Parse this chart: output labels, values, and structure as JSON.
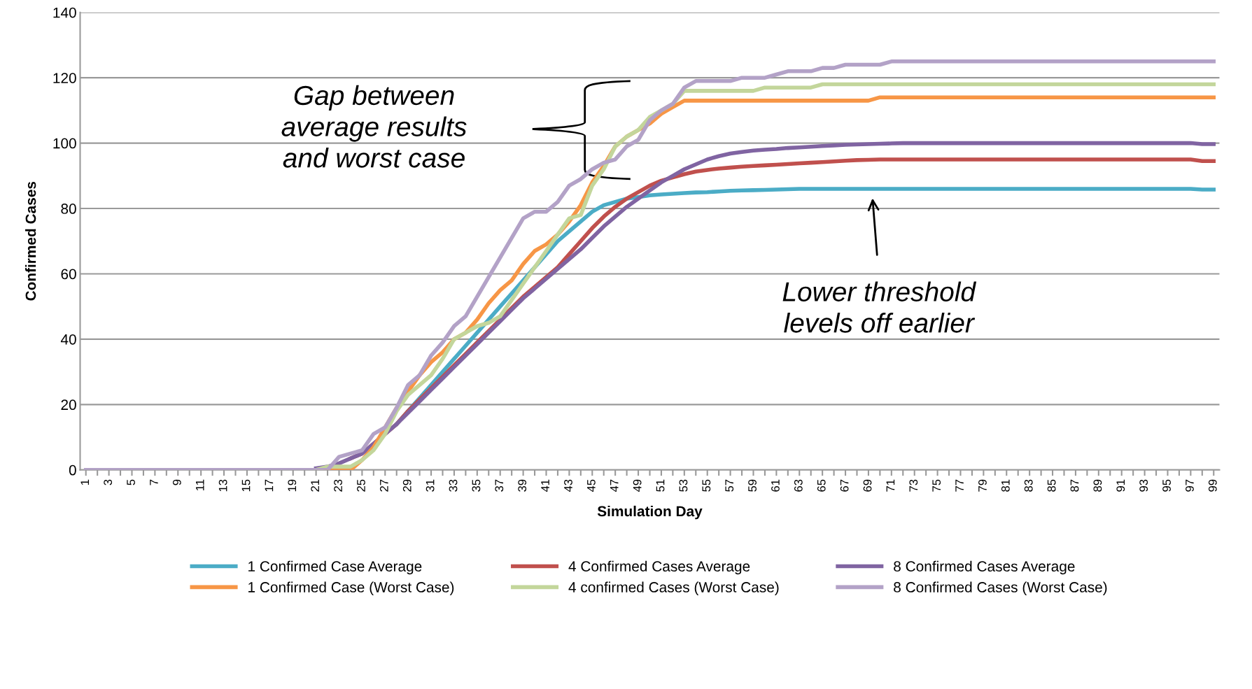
{
  "chart_data": {
    "type": "line",
    "xlabel": "Simulation Day",
    "ylabel": "Confirmed Cases",
    "categories": [
      "1",
      null,
      "3",
      null,
      "5",
      null,
      "7",
      null,
      "9",
      null,
      "11",
      null,
      "13",
      null,
      "15",
      null,
      "17",
      null,
      "19",
      null,
      "21",
      null,
      "23",
      null,
      "25",
      null,
      "27",
      null,
      "29",
      null,
      "31",
      null,
      "33",
      null,
      "35",
      null,
      "37",
      null,
      "39",
      null,
      "41",
      null,
      "43",
      null,
      "45",
      null,
      "47",
      null,
      "49",
      null,
      "51",
      null,
      "53",
      null,
      "55",
      null,
      "57",
      null,
      "59",
      null,
      "61",
      null,
      "63",
      null,
      "65",
      null,
      "67",
      null,
      "69",
      null,
      "71",
      null,
      "73",
      null,
      "75",
      null,
      "77",
      null,
      "79",
      null,
      "81",
      null,
      "83",
      null,
      "85",
      null,
      "87",
      null,
      "89",
      null,
      "91",
      null,
      "93",
      null,
      "95",
      null,
      "97",
      null,
      "99"
    ],
    "ylim": [
      0,
      140
    ],
    "yticks": [
      0,
      20,
      40,
      60,
      80,
      100,
      120,
      140
    ],
    "grid": "y",
    "legend": "bottom",
    "marker": "none",
    "line_style": "solid",
    "series": [
      {
        "name": "1 Confirmed Case Average",
        "color": "#4bacc6",
        "values": [
          null,
          null,
          null,
          null,
          null,
          null,
          null,
          null,
          null,
          null,
          null,
          null,
          null,
          null,
          null,
          null,
          null,
          null,
          null,
          null,
          null,
          null,
          null,
          null,
          null,
          null,
          null,
          14,
          18,
          22,
          26,
          30,
          34,
          38,
          42,
          46,
          50,
          54,
          58,
          62,
          66,
          70,
          73,
          76,
          79,
          81,
          82,
          83,
          83.5,
          84,
          84.3,
          84.5,
          84.7,
          84.9,
          85,
          85.2,
          85.4,
          85.5,
          85.6,
          85.7,
          85.8,
          85.9,
          86,
          86,
          86,
          86,
          86,
          86,
          86,
          86,
          86,
          86,
          86,
          86,
          86,
          86,
          86,
          86,
          86,
          86,
          86,
          86,
          86,
          86,
          86,
          86,
          86,
          86,
          86,
          86,
          86,
          86,
          86,
          86,
          86,
          86,
          86,
          85.8,
          85.8
        ]
      },
      {
        "name": "4 Confirmed Cases Average",
        "color": "#c0504d",
        "values": [
          null,
          null,
          null,
          null,
          null,
          null,
          null,
          null,
          null,
          null,
          null,
          null,
          null,
          null,
          null,
          null,
          null,
          null,
          null,
          null,
          null,
          null,
          null,
          3.5,
          5,
          8,
          11,
          14,
          18,
          21.5,
          25,
          28.5,
          32,
          35.5,
          39,
          42.5,
          46,
          49.5,
          53,
          56,
          59,
          62,
          66,
          70,
          74,
          77.5,
          80.5,
          83,
          85,
          87,
          88.5,
          89.5,
          90.5,
          91.3,
          91.8,
          92.2,
          92.5,
          92.8,
          93,
          93.2,
          93.4,
          93.6,
          93.8,
          94,
          94.2,
          94.4,
          94.6,
          94.8,
          94.9,
          95,
          95,
          95,
          95,
          95,
          95,
          95,
          95,
          95,
          95,
          95,
          95,
          95,
          95,
          95,
          95,
          95,
          95,
          95,
          95,
          95,
          95,
          95,
          95,
          95,
          95,
          95,
          95,
          94.5,
          94.5
        ]
      },
      {
        "name": "8 Confirmed Cases Average",
        "color": "#8064a2",
        "values": [
          null,
          null,
          null,
          null,
          null,
          null,
          null,
          null,
          null,
          null,
          null,
          null,
          null,
          null,
          null,
          null,
          null,
          null,
          null,
          null,
          0.5,
          1,
          2,
          3.5,
          5,
          8,
          11,
          14,
          17.5,
          21,
          24.5,
          28,
          31.5,
          35,
          38.5,
          42,
          45.5,
          49,
          52.5,
          55.5,
          58.5,
          61.5,
          64.5,
          67.5,
          71,
          74.5,
          77.5,
          80.5,
          83,
          85.5,
          88,
          90,
          92,
          93.5,
          95,
          96,
          96.8,
          97.3,
          97.7,
          98,
          98.2,
          98.5,
          98.7,
          98.9,
          99.1,
          99.3,
          99.5,
          99.6,
          99.7,
          99.8,
          99.9,
          100,
          100,
          100,
          100,
          100,
          100,
          100,
          100,
          100,
          100,
          100,
          100,
          100,
          100,
          100,
          100,
          100,
          100,
          100,
          100,
          100,
          100,
          100,
          100,
          100,
          100,
          99.7,
          99.7
        ]
      },
      {
        "name": "1 Confirmed Case (Worst Case)",
        "color": "#f79646",
        "values": [
          null,
          null,
          null,
          null,
          null,
          null,
          null,
          null,
          null,
          null,
          null,
          null,
          null,
          null,
          null,
          null,
          null,
          null,
          null,
          null,
          0,
          0,
          0,
          0,
          3,
          7,
          13,
          19,
          24,
          29,
          33,
          36,
          40,
          42,
          46,
          51,
          55,
          58,
          63,
          67,
          69,
          72,
          76,
          81,
          88,
          93,
          99,
          102,
          104,
          106,
          109,
          111,
          113,
          113,
          113,
          113,
          113,
          113,
          113,
          113,
          113,
          113,
          113,
          113,
          113,
          113,
          113,
          113,
          113,
          114,
          114,
          114,
          114,
          114,
          114,
          114,
          114,
          114,
          114,
          114,
          114,
          114,
          114,
          114,
          114,
          114,
          114,
          114,
          114,
          114,
          114,
          114,
          114,
          114,
          114,
          114,
          114,
          114,
          114
        ]
      },
      {
        "name": "4 confirmed Cases (Worst Case)",
        "color": "#c3d69b",
        "values": [
          null,
          null,
          null,
          null,
          null,
          null,
          null,
          null,
          null,
          null,
          null,
          null,
          null,
          null,
          null,
          null,
          null,
          null,
          null,
          null,
          0,
          1,
          1,
          1,
          3,
          6,
          11,
          18,
          23,
          26,
          29,
          34,
          40,
          42,
          44,
          45,
          47,
          52,
          57,
          62,
          67,
          72,
          77,
          78,
          87,
          92,
          99,
          102,
          104,
          108,
          110,
          112,
          116,
          116,
          116,
          116,
          116,
          116,
          116,
          117,
          117,
          117,
          117,
          117,
          118,
          118,
          118,
          118,
          118,
          118,
          118,
          118,
          118,
          118,
          118,
          118,
          118,
          118,
          118,
          118,
          118,
          118,
          118,
          118,
          118,
          118,
          118,
          118,
          118,
          118,
          118,
          118,
          118,
          118,
          118,
          118,
          118,
          118,
          118
        ]
      },
      {
        "name": "8 Confirmed Cases (Worst Case)",
        "color": "#b3a2c7",
        "values": [
          0,
          0,
          0,
          0,
          0,
          0,
          0,
          0,
          0,
          0,
          0,
          0,
          0,
          0,
          0,
          0,
          0,
          0,
          0,
          0,
          0,
          0,
          4,
          5,
          6,
          11,
          13,
          19,
          26,
          29,
          35,
          39,
          44,
          47,
          53,
          59,
          65,
          71,
          77,
          79,
          79,
          82,
          87,
          89,
          92,
          94,
          95,
          99,
          101,
          107,
          110,
          112,
          117,
          119,
          119,
          119,
          119,
          120,
          120,
          120,
          121,
          122,
          122,
          122,
          123,
          123,
          124,
          124,
          124,
          124,
          125,
          125,
          125,
          125,
          125,
          125,
          125,
          125,
          125,
          125,
          125,
          125,
          125,
          125,
          125,
          125,
          125,
          125,
          125,
          125,
          125,
          125,
          125,
          125,
          125,
          125,
          125,
          125,
          125
        ]
      }
    ],
    "annotations": [
      "Gap between\naverage results\nand worst case",
      "Lower threshold\nlevels off earlier"
    ]
  }
}
